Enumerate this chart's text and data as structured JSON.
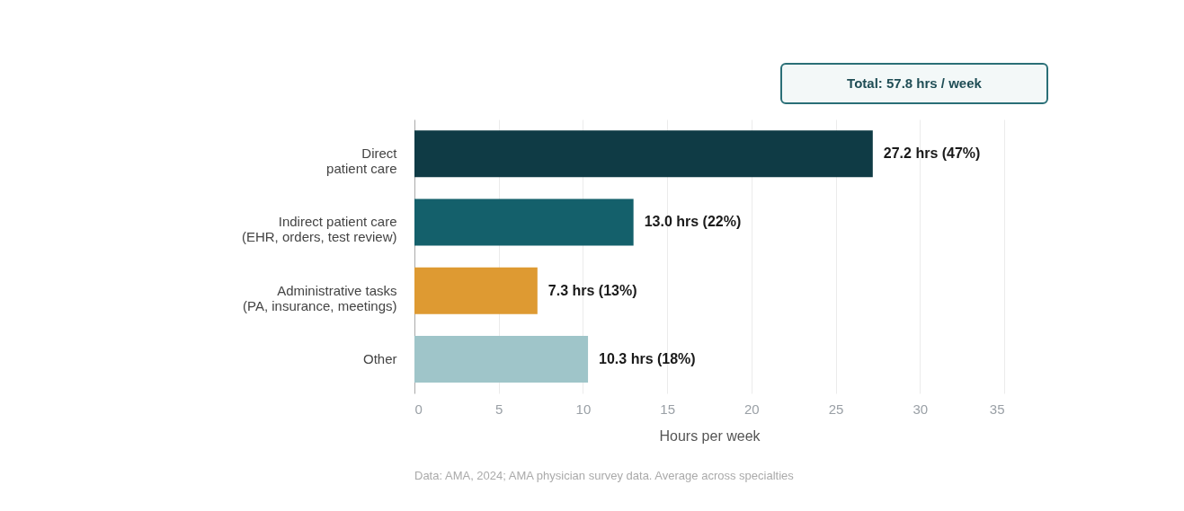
{
  "chart_data": {
    "type": "bar",
    "orientation": "horizontal",
    "categories": [
      "Direct\npatient care",
      "Indirect patient care\n(EHR, orders, test review)",
      "Administrative tasks\n(PA, insurance, meetings)",
      "Other"
    ],
    "values": [
      27.2,
      13.0,
      7.3,
      10.3
    ],
    "colors": [
      "#0f3b45",
      "#14606b",
      "#de9a32",
      "#9fc5c9"
    ],
    "value_labels": [
      "27.2 hrs (47%)",
      "13.0 hrs (22%)",
      "7.3 hrs (13%)",
      "10.3 hrs (18%)"
    ],
    "xlabel": "Hours per week",
    "xlim": [
      0,
      35
    ],
    "xticks": [
      0,
      5,
      10,
      15,
      20,
      25,
      30,
      35
    ],
    "grid": "x",
    "annotations": [
      "Total: 57.8 hrs / week",
      "Data: AMA, 2024; AMA physician survey data. Average across specialties"
    ]
  }
}
